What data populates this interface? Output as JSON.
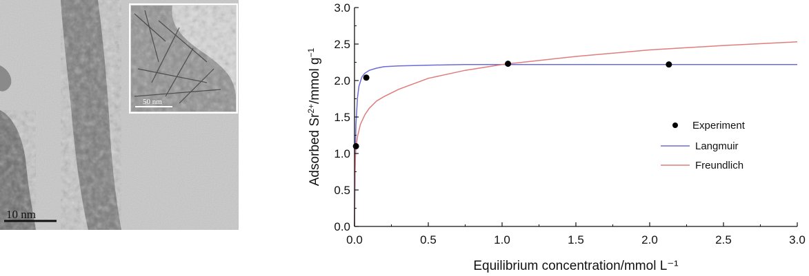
{
  "figure": {
    "main_scale_bar": "10 nm",
    "inset_scale_bar": "50 nm"
  },
  "chart_data": {
    "type": "scatter",
    "xlabel": "Equilibrium concentration/mmol L⁻¹",
    "ylabel_parts": [
      "Adsorbed Sr",
      "2+",
      "/mmol g",
      "−1"
    ],
    "xlim": [
      0.0,
      3.0
    ],
    "ylim": [
      0.0,
      3.0
    ],
    "xticks": [
      "0.0",
      "0.5",
      "1.0",
      "1.5",
      "2.0",
      "2.5",
      "3.0"
    ],
    "yticks": [
      "0.0",
      "0.5",
      "1.0",
      "1.5",
      "2.0",
      "2.5",
      "3.0"
    ],
    "grid": false,
    "legend_position": "right",
    "series": [
      {
        "name": "Experiment",
        "kind": "points",
        "color": "#000000",
        "x": [
          0.01,
          0.08,
          1.04,
          2.13
        ],
        "y": [
          1.1,
          2.04,
          2.23,
          2.22
        ]
      },
      {
        "name": "Langmuir",
        "kind": "curve",
        "color": "#6a6ad8",
        "x": [
          0.0,
          0.005,
          0.01,
          0.02,
          0.03,
          0.05,
          0.07,
          0.1,
          0.15,
          0.2,
          0.3,
          0.5,
          0.75,
          1.0,
          1.5,
          2.0,
          2.5,
          3.0
        ],
        "y": [
          0.0,
          0.99,
          1.4,
          1.76,
          1.92,
          2.05,
          2.1,
          2.14,
          2.17,
          2.19,
          2.2,
          2.21,
          2.22,
          2.22,
          2.22,
          2.22,
          2.22,
          2.22
        ]
      },
      {
        "name": "Freundlich",
        "kind": "curve",
        "color": "#e07c7c",
        "x": [
          0.0,
          0.001,
          0.003,
          0.006,
          0.01,
          0.02,
          0.04,
          0.07,
          0.1,
          0.15,
          0.2,
          0.3,
          0.5,
          0.75,
          1.0,
          1.5,
          2.0,
          2.5,
          3.0
        ],
        "y": [
          0.0,
          0.45,
          0.72,
          0.93,
          1.08,
          1.23,
          1.4,
          1.53,
          1.62,
          1.72,
          1.78,
          1.88,
          2.03,
          2.14,
          2.22,
          2.33,
          2.42,
          2.48,
          2.53
        ]
      }
    ]
  }
}
